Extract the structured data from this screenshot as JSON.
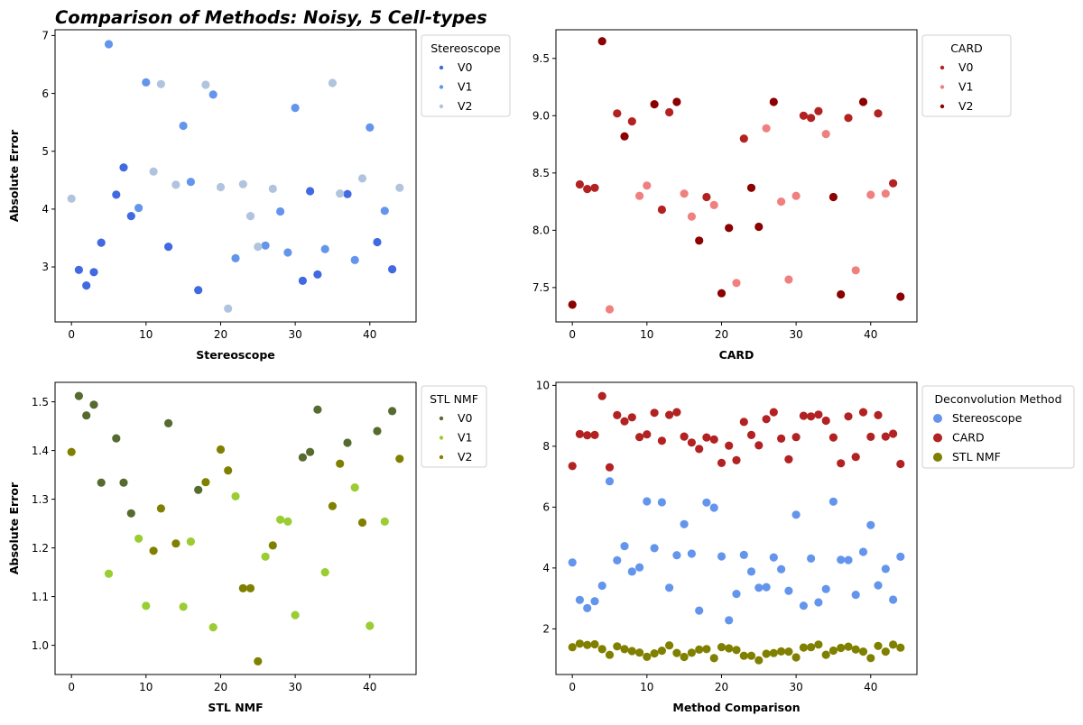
{
  "figure": {
    "title": "Comparison of Methods: Noisy, 5 Cell-types"
  },
  "chart_data": [
    {
      "type": "scatter",
      "panel": "stereoscope",
      "xlabel": "Stereoscope",
      "ylabel": "Absolute Error",
      "xlim": [
        -2.2,
        46.2
      ],
      "ylim": [
        2.05,
        7.1
      ],
      "xticks": [
        0,
        10,
        20,
        30,
        40
      ],
      "yticks": [
        3,
        4,
        5,
        6,
        7
      ],
      "legend": {
        "title": "Stereoscope",
        "placement": "outside-right-top",
        "entries": [
          "V0",
          "V1",
          "V2"
        ]
      },
      "grid": false,
      "series": [
        {
          "name": "V0",
          "color": "#4169E1",
          "x": [
            1,
            2,
            3,
            4,
            6,
            7,
            8,
            13,
            17,
            31,
            32,
            33,
            37,
            41,
            43
          ],
          "y": [
            2.95,
            2.68,
            2.91,
            3.42,
            4.25,
            4.72,
            3.88,
            3.35,
            2.6,
            2.76,
            4.31,
            2.87,
            4.26,
            3.43,
            2.96
          ]
        },
        {
          "name": "V1",
          "color": "#6495ED",
          "x": [
            5,
            9,
            10,
            15,
            16,
            19,
            22,
            26,
            28,
            29,
            30,
            34,
            38,
            40,
            42
          ],
          "y": [
            6.85,
            4.02,
            6.19,
            5.44,
            4.47,
            5.98,
            3.15,
            3.37,
            3.96,
            3.25,
            5.75,
            3.31,
            3.12,
            5.41,
            3.97
          ]
        },
        {
          "name": "V2",
          "color": "#B0C4DE",
          "x": [
            0,
            11,
            12,
            14,
            18,
            20,
            21,
            23,
            24,
            25,
            27,
            35,
            36,
            39,
            44
          ],
          "y": [
            4.18,
            4.65,
            6.16,
            4.42,
            6.15,
            4.38,
            2.28,
            4.43,
            3.88,
            3.35,
            4.35,
            6.18,
            4.27,
            4.53,
            4.37
          ]
        }
      ]
    },
    {
      "type": "scatter",
      "panel": "card",
      "xlabel": "CARD",
      "ylabel": "",
      "xlim": [
        -2.2,
        46.2
      ],
      "ylim": [
        7.2,
        9.75
      ],
      "xticks": [
        0,
        10,
        20,
        30,
        40
      ],
      "yticks": [
        7.5,
        8.0,
        8.5,
        9.0,
        9.5
      ],
      "legend": {
        "title": "CARD",
        "placement": "outside-right-top",
        "entries": [
          "V0",
          "V1",
          "V2"
        ]
      },
      "grid": false,
      "series": [
        {
          "name": "V0",
          "color": "#B22222",
          "x": [
            1,
            2,
            3,
            6,
            8,
            12,
            13,
            18,
            23,
            31,
            32,
            33,
            37,
            41,
            43
          ],
          "y": [
            8.4,
            8.36,
            8.37,
            9.02,
            8.95,
            8.18,
            9.03,
            8.29,
            8.8,
            9.0,
            8.98,
            9.04,
            8.98,
            9.02,
            8.41
          ]
        },
        {
          "name": "V1",
          "color": "#F08080",
          "x": [
            5,
            9,
            10,
            15,
            16,
            19,
            22,
            26,
            28,
            29,
            30,
            34,
            38,
            40,
            42
          ],
          "y": [
            7.31,
            8.3,
            8.39,
            8.32,
            8.12,
            8.22,
            7.54,
            8.89,
            8.25,
            7.57,
            8.3,
            8.84,
            7.65,
            8.31,
            8.32
          ]
        },
        {
          "name": "V2",
          "color": "#8B0000",
          "x": [
            0,
            4,
            7,
            11,
            14,
            17,
            20,
            21,
            24,
            25,
            27,
            35,
            36,
            39,
            44
          ],
          "y": [
            7.35,
            9.65,
            8.82,
            9.1,
            9.12,
            7.91,
            7.45,
            8.02,
            8.37,
            8.03,
            9.12,
            8.29,
            7.44,
            9.12,
            7.42
          ]
        }
      ]
    },
    {
      "type": "scatter",
      "panel": "stlnmf",
      "xlabel": "STL NMF",
      "ylabel": "Absolute Error",
      "xlim": [
        -2.2,
        46.2
      ],
      "ylim": [
        0.94,
        1.54
      ],
      "xticks": [
        0,
        10,
        20,
        30,
        40
      ],
      "yticks": [
        1.0,
        1.1,
        1.2,
        1.3,
        1.4,
        1.5
      ],
      "legend": {
        "title": "STL NMF",
        "placement": "outside-right-top",
        "entries": [
          "V0",
          "V1",
          "V2"
        ]
      },
      "grid": false,
      "series": [
        {
          "name": "V0",
          "color": "#556B2F",
          "x": [
            1,
            2,
            3,
            4,
            6,
            7,
            8,
            13,
            17,
            31,
            32,
            33,
            37,
            41,
            43
          ],
          "y": [
            1.512,
            1.472,
            1.494,
            1.334,
            1.425,
            1.334,
            1.271,
            1.456,
            1.319,
            1.386,
            1.397,
            1.484,
            1.416,
            1.44,
            1.481
          ]
        },
        {
          "name": "V1",
          "color": "#9ACD32",
          "x": [
            5,
            9,
            10,
            15,
            16,
            19,
            22,
            26,
            28,
            29,
            30,
            34,
            38,
            40,
            42
          ],
          "y": [
            1.147,
            1.219,
            1.081,
            1.079,
            1.213,
            1.037,
            1.306,
            1.182,
            1.258,
            1.254,
            1.062,
            1.15,
            1.324,
            1.04,
            1.254
          ]
        },
        {
          "name": "V2",
          "color": "#808000",
          "x": [
            0,
            11,
            12,
            14,
            18,
            20,
            21,
            23,
            24,
            25,
            27,
            35,
            36,
            39,
            44
          ],
          "y": [
            1.397,
            1.194,
            1.281,
            1.209,
            1.335,
            1.402,
            1.359,
            1.117,
            1.117,
            0.967,
            1.205,
            1.286,
            1.373,
            1.252,
            1.383
          ]
        }
      ]
    },
    {
      "type": "scatter",
      "panel": "comparison",
      "xlabel": "Method Comparison",
      "ylabel": "",
      "xlim": [
        -2.2,
        46.2
      ],
      "ylim": [
        0.5,
        10.1
      ],
      "xticks": [
        0,
        10,
        20,
        30,
        40
      ],
      "yticks": [
        2,
        4,
        6,
        8,
        10
      ],
      "legend": {
        "title": "Deconvolution Method",
        "placement": "outside-right-top",
        "entries": [
          "Stereoscope",
          "CARD",
          "STL NMF"
        ]
      },
      "grid": false,
      "series": [
        {
          "name": "Stereoscope",
          "color": "#6495ED",
          "x": [
            0,
            1,
            2,
            3,
            4,
            5,
            6,
            7,
            8,
            9,
            10,
            11,
            12,
            13,
            14,
            15,
            16,
            17,
            18,
            19,
            20,
            21,
            22,
            23,
            24,
            25,
            26,
            27,
            28,
            29,
            30,
            31,
            32,
            33,
            34,
            35,
            36,
            37,
            38,
            39,
            40,
            41,
            42,
            43,
            44
          ],
          "y": [
            4.18,
            2.95,
            2.68,
            2.91,
            3.42,
            6.85,
            4.25,
            4.72,
            3.88,
            4.02,
            6.19,
            4.65,
            6.16,
            3.35,
            4.42,
            5.44,
            4.47,
            2.6,
            6.15,
            5.98,
            4.38,
            2.28,
            3.15,
            4.43,
            3.88,
            3.35,
            3.37,
            4.35,
            3.96,
            3.25,
            5.75,
            2.76,
            4.31,
            2.87,
            3.31,
            6.18,
            4.27,
            4.26,
            3.12,
            4.53,
            5.41,
            3.43,
            3.97,
            2.96,
            4.37
          ]
        },
        {
          "name": "CARD",
          "color": "#B22222",
          "x": [
            0,
            1,
            2,
            3,
            4,
            5,
            6,
            7,
            8,
            9,
            10,
            11,
            12,
            13,
            14,
            15,
            16,
            17,
            18,
            19,
            20,
            21,
            22,
            23,
            24,
            25,
            26,
            27,
            28,
            29,
            30,
            31,
            32,
            33,
            34,
            35,
            36,
            37,
            38,
            39,
            40,
            41,
            42,
            43,
            44
          ],
          "y": [
            7.35,
            8.4,
            8.36,
            8.37,
            9.65,
            7.31,
            9.02,
            8.82,
            8.95,
            8.3,
            8.39,
            9.1,
            8.18,
            9.03,
            9.12,
            8.32,
            8.12,
            7.91,
            8.29,
            8.22,
            7.45,
            8.02,
            7.54,
            8.8,
            8.37,
            8.03,
            8.89,
            9.12,
            8.25,
            7.57,
            8.3,
            9.0,
            8.98,
            9.04,
            8.84,
            8.29,
            7.44,
            8.98,
            7.65,
            9.12,
            8.31,
            9.02,
            8.32,
            8.41,
            7.42
          ]
        },
        {
          "name": "STL NMF",
          "color": "#808000",
          "x": [
            0,
            1,
            2,
            3,
            4,
            5,
            6,
            7,
            8,
            9,
            10,
            11,
            12,
            13,
            14,
            15,
            16,
            17,
            18,
            19,
            20,
            21,
            22,
            23,
            24,
            25,
            26,
            27,
            28,
            29,
            30,
            31,
            32,
            33,
            34,
            35,
            36,
            37,
            38,
            39,
            40,
            41,
            42,
            43,
            44
          ],
          "y": [
            1.397,
            1.512,
            1.472,
            1.494,
            1.334,
            1.147,
            1.425,
            1.334,
            1.271,
            1.219,
            1.081,
            1.194,
            1.281,
            1.456,
            1.209,
            1.079,
            1.213,
            1.319,
            1.335,
            1.037,
            1.402,
            1.359,
            1.306,
            1.117,
            1.117,
            0.967,
            1.182,
            1.205,
            1.258,
            1.254,
            1.062,
            1.386,
            1.397,
            1.484,
            1.15,
            1.286,
            1.373,
            1.416,
            1.324,
            1.252,
            1.04,
            1.44,
            1.254,
            1.481,
            1.383
          ]
        }
      ]
    }
  ]
}
